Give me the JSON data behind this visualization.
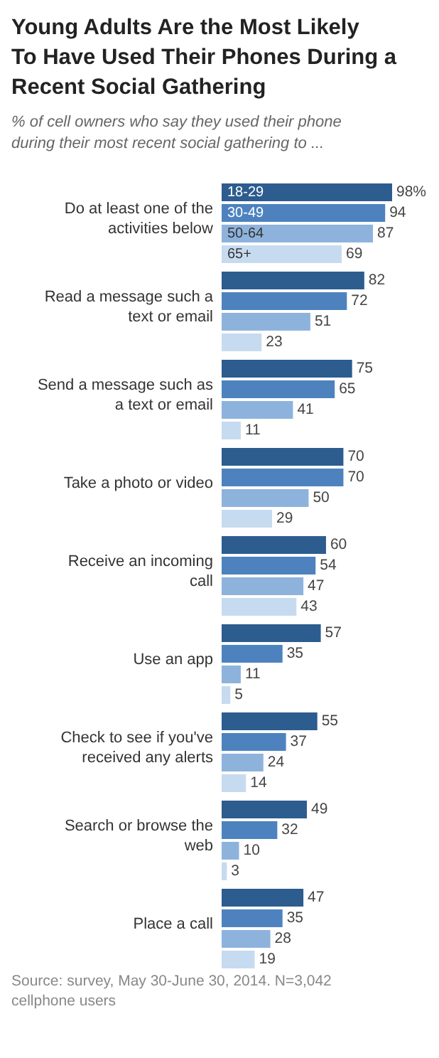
{
  "chart_data": {
    "type": "bar",
    "orientation": "horizontal",
    "title": "Young Adults Are the Most Likely To Have Used Their Phones During a Recent Social Gathering",
    "subtitle": "% of cell owners who say they used their phone during their most recent social gathering to ...",
    "categories": [
      "Do at least one of the activities below",
      "Read a message such a text or email",
      "Send a message such as a text or email",
      "Take a photo or video",
      "Receive an incoming call",
      "Use an app",
      "Check to see if you've received any alerts",
      "Search or browse the web",
      "Place a call"
    ],
    "series": [
      {
        "name": "18-29",
        "color": "#2d5c8f",
        "values": [
          98,
          82,
          75,
          70,
          60,
          57,
          55,
          49,
          47
        ],
        "value_labels": [
          "98%",
          "82",
          "75",
          "70",
          "60",
          "57",
          "55",
          "49",
          "47"
        ]
      },
      {
        "name": "30-49",
        "color": "#4d82bf",
        "values": [
          94,
          72,
          65,
          70,
          54,
          35,
          37,
          32,
          35
        ],
        "value_labels": [
          "94",
          "72",
          "65",
          "70",
          "54",
          "35",
          "37",
          "32",
          "35"
        ]
      },
      {
        "name": "50-64",
        "color": "#8db3dd",
        "values": [
          87,
          51,
          41,
          50,
          47,
          11,
          24,
          10,
          28
        ],
        "value_labels": [
          "87",
          "51",
          "41",
          "50",
          "47",
          "11",
          "24",
          "10",
          "28"
        ]
      },
      {
        "name": "65+",
        "color": "#c7dbf0",
        "values": [
          69,
          23,
          11,
          29,
          43,
          5,
          14,
          3,
          19
        ],
        "value_labels": [
          "69",
          "23",
          "11",
          "29",
          "43",
          "5",
          "14",
          "3",
          "19"
        ]
      }
    ],
    "annotations": [
      "Source: survey, May 30-June 30, 2014. N=3,042 cellphone users"
    ]
  }
}
